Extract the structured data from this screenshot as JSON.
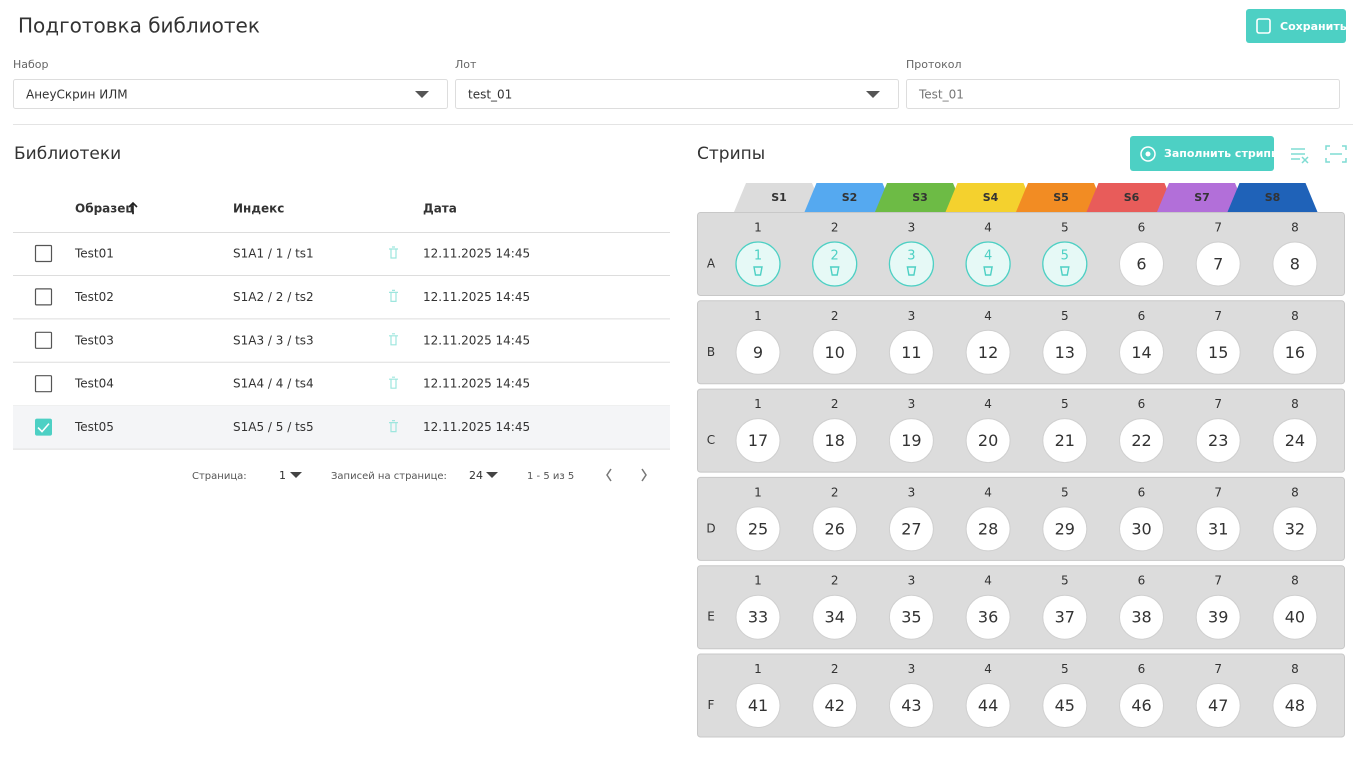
{
  "header": {
    "title": "Подготовка библиотек",
    "save": "Сохранить"
  },
  "form": {
    "fields": [
      {
        "label": "Набор",
        "value": "АнеуСкрин ИЛМ",
        "dropdown": true
      },
      {
        "label": "Лот",
        "value": "test_01",
        "dropdown": true
      },
      {
        "label": "Протокол",
        "value": "Test_01",
        "dropdown": false
      }
    ]
  },
  "libraries": {
    "title": "Библиотеки",
    "columns": [
      "Образец",
      "Индекс",
      "Дата"
    ],
    "rows": [
      {
        "sample": "Test01",
        "index": "S1A1 / 1 / ts1",
        "date": "12.11.2025 14:45",
        "checked": false
      },
      {
        "sample": "Test02",
        "index": "S1A2 / 2 / ts2",
        "date": "12.11.2025 14:45",
        "checked": false
      },
      {
        "sample": "Test03",
        "index": "S1A3 / 3 / ts3",
        "date": "12.11.2025 14:45",
        "checked": false
      },
      {
        "sample": "Test04",
        "index": "S1A4 / 4 / ts4",
        "date": "12.11.2025 14:45",
        "checked": false
      },
      {
        "sample": "Test05",
        "index": "S1A5 / 5 / ts5",
        "date": "12.11.2025 14:45",
        "checked": true
      }
    ],
    "pagination": {
      "page_label": "Страница:",
      "page": "1",
      "per_page_label": "Записей на странице:",
      "per_page": "24",
      "range": "1 - 5 из 5"
    }
  },
  "strips": {
    "title": "Стрипы",
    "fill_button": "Заполнить стрипы",
    "tabs": [
      {
        "label": "S1",
        "color": "#dcdcdc"
      },
      {
        "label": "S2",
        "color": "#55a9f0"
      },
      {
        "label": "S3",
        "color": "#6dbb45"
      },
      {
        "label": "S4",
        "color": "#f4d12e"
      },
      {
        "label": "S5",
        "color": "#f28c23"
      },
      {
        "label": "S6",
        "color": "#e85c5a"
      },
      {
        "label": "S7",
        "color": "#b26fd9"
      },
      {
        "label": "S8",
        "color": "#1f62b8"
      }
    ],
    "columns": [
      "1",
      "2",
      "3",
      "4",
      "5",
      "6",
      "7",
      "8"
    ],
    "rows": [
      {
        "label": "A",
        "wells": [
          "1",
          "2",
          "3",
          "4",
          "5",
          "6",
          "7",
          "8"
        ],
        "filled": [
          true,
          true,
          true,
          true,
          true,
          false,
          false,
          false
        ]
      },
      {
        "label": "B",
        "wells": [
          "9",
          "10",
          "11",
          "12",
          "13",
          "14",
          "15",
          "16"
        ],
        "filled": [
          false,
          false,
          false,
          false,
          false,
          false,
          false,
          false
        ]
      },
      {
        "label": "C",
        "wells": [
          "17",
          "18",
          "19",
          "20",
          "21",
          "22",
          "23",
          "24"
        ],
        "filled": [
          false,
          false,
          false,
          false,
          false,
          false,
          false,
          false
        ]
      },
      {
        "label": "D",
        "wells": [
          "25",
          "26",
          "27",
          "28",
          "29",
          "30",
          "31",
          "32"
        ],
        "filled": [
          false,
          false,
          false,
          false,
          false,
          false,
          false,
          false
        ]
      },
      {
        "label": "E",
        "wells": [
          "33",
          "34",
          "35",
          "36",
          "37",
          "38",
          "39",
          "40"
        ],
        "filled": [
          false,
          false,
          false,
          false,
          false,
          false,
          false,
          false
        ]
      },
      {
        "label": "F",
        "wells": [
          "41",
          "42",
          "43",
          "44",
          "45",
          "46",
          "47",
          "48"
        ],
        "filled": [
          false,
          false,
          false,
          false,
          false,
          false,
          false,
          false
        ]
      }
    ]
  }
}
